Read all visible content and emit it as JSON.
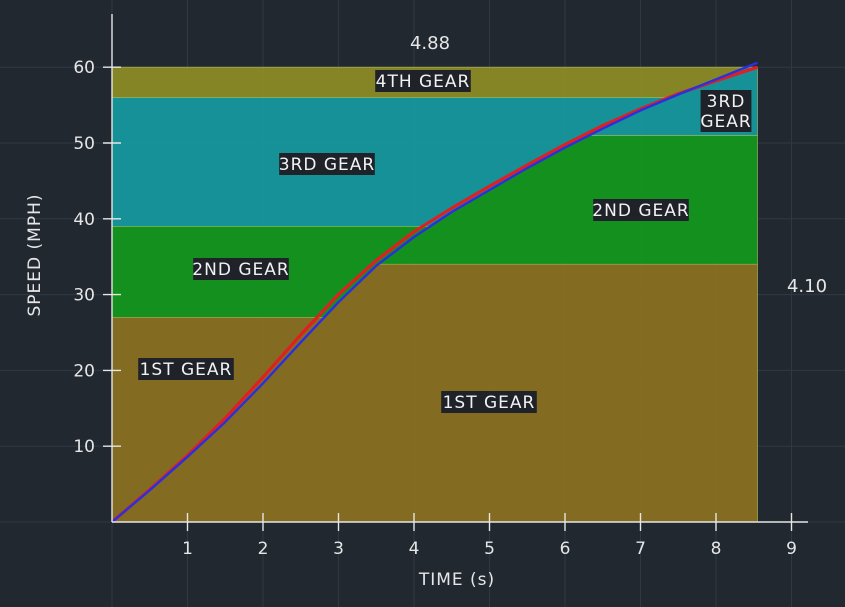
{
  "chart_data": {
    "type": "area",
    "xlabel": "TIME (s)",
    "ylabel": "SPEED (MPH)",
    "xlim": [
      0,
      9
    ],
    "ylim": [
      0,
      60
    ],
    "x_ticks": [
      1,
      2,
      3,
      4,
      5,
      6,
      7,
      8,
      9
    ],
    "y_ticks": [
      10,
      20,
      30,
      40,
      50,
      60
    ],
    "grid": true,
    "ratio_labels": {
      "top": "4.88",
      "right": "4.10"
    },
    "left_gear_bands": [
      {
        "label": "1ST GEAR",
        "from": 0,
        "to": 27,
        "color": "#8a6f22"
      },
      {
        "label": "2ND GEAR",
        "from": 27,
        "to": 39,
        "color": "#13961c"
      },
      {
        "label": "3RD GEAR",
        "from": 39,
        "to": 56,
        "color": "#16979e"
      },
      {
        "label": "4TH GEAR",
        "from": 56,
        "to": 60,
        "color": "#8c8a25"
      }
    ],
    "right_gear_bands": [
      {
        "label": "1ST GEAR",
        "from": 0,
        "to": 34,
        "color": "#8a6f22"
      },
      {
        "label": "2ND GEAR",
        "from": 34,
        "to": 51,
        "color": "#13961c"
      },
      {
        "label": "3RD\nGEAR",
        "from": 51,
        "to": 60,
        "color": "#16979e"
      }
    ],
    "x_max_data": 8.55,
    "series": [
      {
        "color": "#e02020",
        "x": [
          0,
          0.5,
          1,
          1.5,
          2,
          2.5,
          3,
          3.5,
          4,
          4.5,
          5,
          5.5,
          6,
          6.5,
          7,
          7.5,
          8,
          8.55
        ],
        "y": [
          0,
          4.3,
          8.8,
          13.7,
          19.1,
          24.7,
          30.0,
          34.5,
          38.3,
          41.4,
          44.3,
          47.1,
          49.8,
          52.3,
          54.5,
          56.5,
          58.2,
          60.0
        ]
      },
      {
        "color": "#2a30e0",
        "x": [
          0,
          0.5,
          1,
          1.5,
          2,
          2.5,
          3,
          3.5,
          4,
          4.5,
          5,
          5.5,
          6,
          6.5,
          7,
          7.5,
          8,
          8.55
        ],
        "y": [
          0,
          4.2,
          8.6,
          13.2,
          18.3,
          23.7,
          29.0,
          33.8,
          37.6,
          40.9,
          43.8,
          46.7,
          49.4,
          51.9,
          54.3,
          56.4,
          58.4,
          60.6
        ]
      }
    ]
  }
}
